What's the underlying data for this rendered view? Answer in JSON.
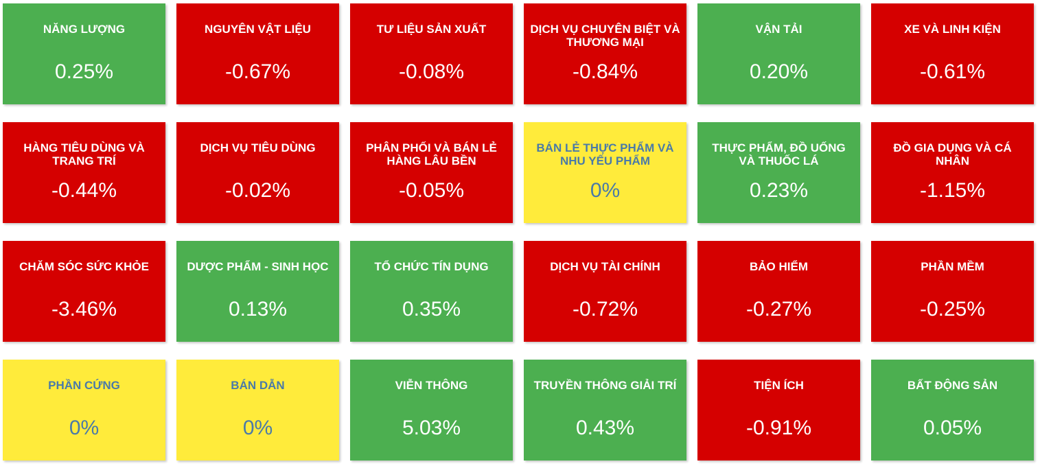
{
  "colors": {
    "up": "#4caf50",
    "down": "#d50000",
    "flat": "#ffeb3b",
    "flat_text": "#4a7aa8",
    "text": "#ffffff"
  },
  "sectors": [
    {
      "name": "NĂNG LƯỢNG",
      "change": "0.25%",
      "status": "up"
    },
    {
      "name": "NGUYÊN VẬT LIỆU",
      "change": "-0.67%",
      "status": "down"
    },
    {
      "name": "TƯ LIỆU SẢN XUẤT",
      "change": "-0.08%",
      "status": "down"
    },
    {
      "name": "DỊCH VỤ CHUYÊN BIỆT VÀ THƯƠNG MẠI",
      "change": "-0.84%",
      "status": "down"
    },
    {
      "name": "VẬN TẢI",
      "change": "0.20%",
      "status": "up"
    },
    {
      "name": "XE VÀ LINH KIỆN",
      "change": "-0.61%",
      "status": "down"
    },
    {
      "name": "HÀNG TIÊU DÙNG VÀ TRANG TRÍ",
      "change": "-0.44%",
      "status": "down"
    },
    {
      "name": "DỊCH VỤ TIÊU DÙNG",
      "change": "-0.02%",
      "status": "down"
    },
    {
      "name": "PHÂN PHỐI VÀ BÁN LẺ HÀNG LÂU BỀN",
      "change": "-0.05%",
      "status": "down"
    },
    {
      "name": "BÁN LẺ THỰC PHẨM VÀ NHU YẾU PHẨM",
      "change": "0%",
      "status": "flat"
    },
    {
      "name": "THỰC PHẨM, ĐỒ UỐNG VÀ THUỐC LÁ",
      "change": "0.23%",
      "status": "up"
    },
    {
      "name": "ĐỒ GIA DỤNG VÀ CÁ NHÂN",
      "change": "-1.15%",
      "status": "down"
    },
    {
      "name": "CHĂM SÓC SỨC KHỎE",
      "change": "-3.46%",
      "status": "down"
    },
    {
      "name": "DƯỢC PHẨM - SINH HỌC",
      "change": "0.13%",
      "status": "up"
    },
    {
      "name": "TỔ CHỨC TÍN DỤNG",
      "change": "0.35%",
      "status": "up"
    },
    {
      "name": "DỊCH VỤ TÀI CHÍNH",
      "change": "-0.72%",
      "status": "down"
    },
    {
      "name": "BẢO HIỂM",
      "change": "-0.27%",
      "status": "down"
    },
    {
      "name": "PHẦN MỀM",
      "change": "-0.25%",
      "status": "down"
    },
    {
      "name": "PHẦN CỨNG",
      "change": "0%",
      "status": "flat"
    },
    {
      "name": "BÁN DẪN",
      "change": "0%",
      "status": "flat"
    },
    {
      "name": "VIỄN THÔNG",
      "change": "5.03%",
      "status": "up"
    },
    {
      "name": "TRUYỀN THÔNG GIẢI TRÍ",
      "change": "0.43%",
      "status": "up"
    },
    {
      "name": "TIỆN ÍCH",
      "change": "-0.91%",
      "status": "down"
    },
    {
      "name": "BẤT ĐỘNG SẢN",
      "change": "0.05%",
      "status": "up"
    }
  ]
}
